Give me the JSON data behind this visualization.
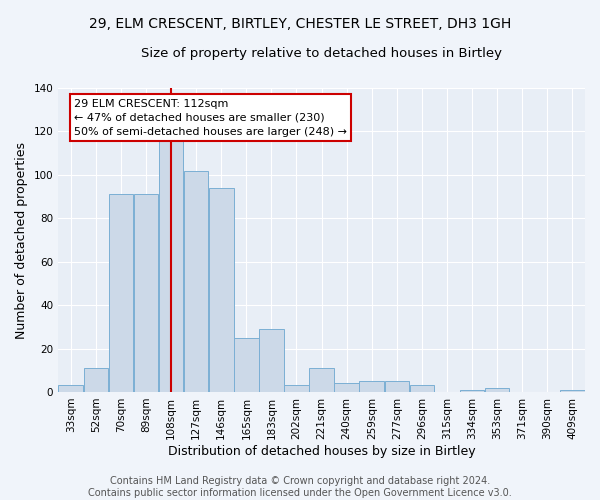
{
  "title1": "29, ELM CRESCENT, BIRTLEY, CHESTER LE STREET, DH3 1GH",
  "title2": "Size of property relative to detached houses in Birtley",
  "xlabel": "Distribution of detached houses by size in Birtley",
  "ylabel": "Number of detached properties",
  "categories": [
    "33sqm",
    "52sqm",
    "70sqm",
    "89sqm",
    "108sqm",
    "127sqm",
    "146sqm",
    "165sqm",
    "183sqm",
    "202sqm",
    "221sqm",
    "240sqm",
    "259sqm",
    "277sqm",
    "296sqm",
    "315sqm",
    "334sqm",
    "353sqm",
    "371sqm",
    "390sqm",
    "409sqm"
  ],
  "values": [
    3,
    11,
    91,
    91,
    116,
    102,
    94,
    25,
    29,
    3,
    11,
    4,
    5,
    5,
    3,
    0,
    1,
    2,
    0,
    0,
    1
  ],
  "bar_color": "#ccd9e8",
  "bar_edge_color": "#7bafd4",
  "bar_width": 0.98,
  "vline_x": 4.0,
  "vline_color": "#cc0000",
  "annotation_text": "29 ELM CRESCENT: 112sqm\n← 47% of detached houses are smaller (230)\n50% of semi-detached houses are larger (248) →",
  "annotation_box_color": "#ffffff",
  "annotation_box_edge": "#cc0000",
  "ylim": [
    0,
    140
  ],
  "yticks": [
    0,
    20,
    40,
    60,
    80,
    100,
    120,
    140
  ],
  "fig_bg_color": "#f0f4fa",
  "ax_bg_color": "#e8eef6",
  "grid_color": "#ffffff",
  "footer": "Contains HM Land Registry data © Crown copyright and database right 2024.\nContains public sector information licensed under the Open Government Licence v3.0.",
  "title1_fontsize": 10,
  "title2_fontsize": 9.5,
  "xlabel_fontsize": 9,
  "ylabel_fontsize": 9,
  "tick_fontsize": 7.5,
  "annotation_fontsize": 8,
  "footer_fontsize": 7
}
